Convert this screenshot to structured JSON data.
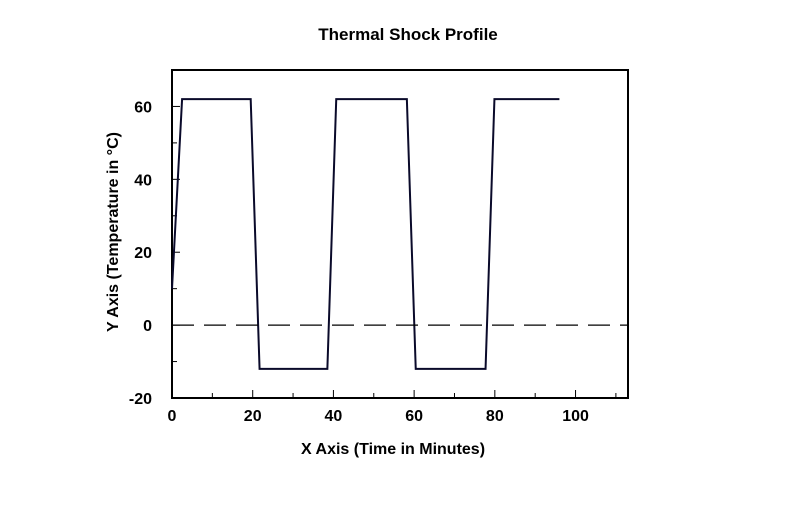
{
  "chart_data": {
    "type": "line",
    "title": "Thermal Shock Profile",
    "xlabel": "X Axis (Time in Minutes)",
    "ylabel": "Y Axis (Temperature in °C)",
    "xlim": [
      0,
      113
    ],
    "ylim": [
      -20,
      70
    ],
    "xticks": [
      0,
      20,
      40,
      60,
      80,
      100
    ],
    "xtick_labels": [
      "0",
      "20",
      "40",
      "60",
      "80",
      "100"
    ],
    "yticks": [
      -20,
      0,
      20,
      40,
      60
    ],
    "ytick_labels": [
      "-20",
      "0",
      "20",
      "40",
      "60"
    ],
    "grid": false,
    "series": [
      {
        "color": "#0a0a2a",
        "line_style": "solid",
        "x": [
          0,
          2.5,
          19.5,
          21.7,
          38.5,
          40.7,
          58.2,
          60.4,
          77.7,
          79.9,
          96
        ],
        "y": [
          10,
          62,
          62,
          -12,
          -12,
          62,
          62,
          -12,
          -12,
          62,
          62
        ]
      },
      {
        "color": "#000000",
        "line_style": "dashed",
        "x": [
          0,
          113
        ],
        "y": [
          0,
          0
        ]
      }
    ]
  }
}
